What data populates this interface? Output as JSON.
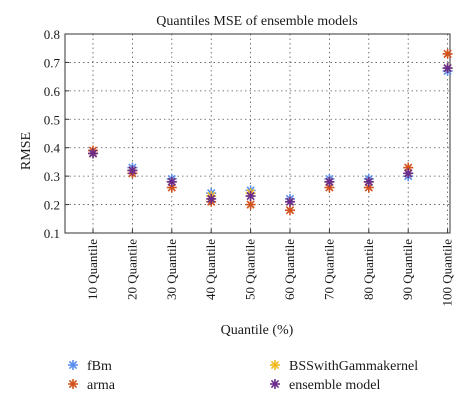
{
  "chart_data": {
    "type": "scatter",
    "title": "Quantiles MSE of ensemble models",
    "xlabel": "Quantile (%)",
    "ylabel": "RMSE",
    "categories": [
      "10 Quantile",
      "20 Quantile",
      "30 Quantile",
      "40 Quantile",
      "50 Quantile",
      "60 Quantile",
      "70 Quantile",
      "80 Quantile",
      "90 Quantile",
      "100 Quantile"
    ],
    "ylim": [
      0.1,
      0.8
    ],
    "yticks": [
      "0.1",
      "0.2",
      "0.3",
      "0.4",
      "0.5",
      "0.6",
      "0.7",
      "0.8"
    ],
    "grid": true,
    "legend_position": "bottom",
    "series": [
      {
        "name": "fBm",
        "color": "#5b8ff0",
        "values": [
          0.38,
          0.33,
          0.29,
          0.24,
          0.25,
          0.22,
          0.29,
          0.29,
          0.3,
          0.67
        ]
      },
      {
        "name": "arma",
        "color": "#d2521c",
        "values": [
          0.39,
          0.31,
          0.26,
          0.21,
          0.2,
          0.18,
          0.26,
          0.26,
          0.33,
          0.73
        ]
      },
      {
        "name": "BSSwithGammakernel",
        "color": "#f0b91e",
        "values": [
          0.38,
          0.32,
          0.28,
          0.23,
          0.24,
          0.21,
          0.28,
          0.28,
          0.31,
          0.68
        ]
      },
      {
        "name": "ensemble model",
        "color": "#6a2c8c",
        "values": [
          0.38,
          0.32,
          0.28,
          0.22,
          0.23,
          0.21,
          0.28,
          0.28,
          0.31,
          0.68
        ]
      }
    ]
  }
}
